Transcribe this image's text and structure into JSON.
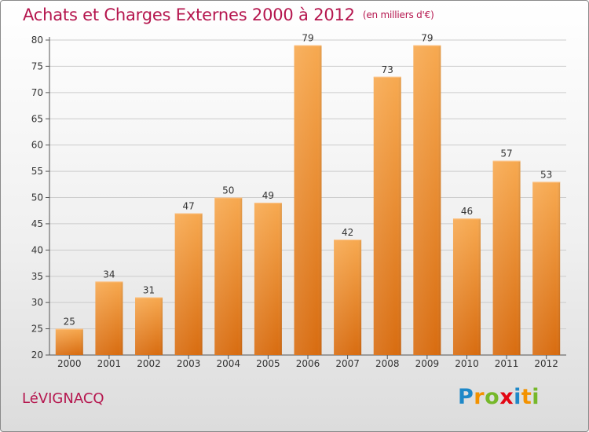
{
  "title": "Achats et Charges Externes 2000 à 2012",
  "subtitle": "(en milliers d'€)",
  "commune": "LéVIGNACQ",
  "logo": {
    "letters": [
      "P",
      "r",
      "o",
      "x",
      "i",
      "t",
      "i"
    ],
    "colors": [
      "#1e88c8",
      "#f39200",
      "#76b82a",
      "#e30613",
      "#1e88c8",
      "#f39200",
      "#76b82a"
    ]
  },
  "colors": {
    "title": "#b5164e",
    "bar_top": "#f7a950",
    "bar_bottom": "#d86c10",
    "grid": "#cccccc"
  },
  "chart_data": {
    "type": "bar",
    "categories": [
      "2000",
      "2001",
      "2002",
      "2003",
      "2004",
      "2005",
      "2006",
      "2007",
      "2008",
      "2009",
      "2010",
      "2011",
      "2012"
    ],
    "values": [
      25,
      34,
      31,
      47,
      50,
      49,
      79,
      42,
      73,
      79,
      46,
      57,
      53
    ],
    "ylim": [
      20,
      80
    ],
    "yticks": [
      20,
      25,
      30,
      35,
      40,
      45,
      50,
      55,
      60,
      65,
      70,
      75,
      80
    ],
    "grid": true,
    "xlabel": "",
    "ylabel": ""
  }
}
